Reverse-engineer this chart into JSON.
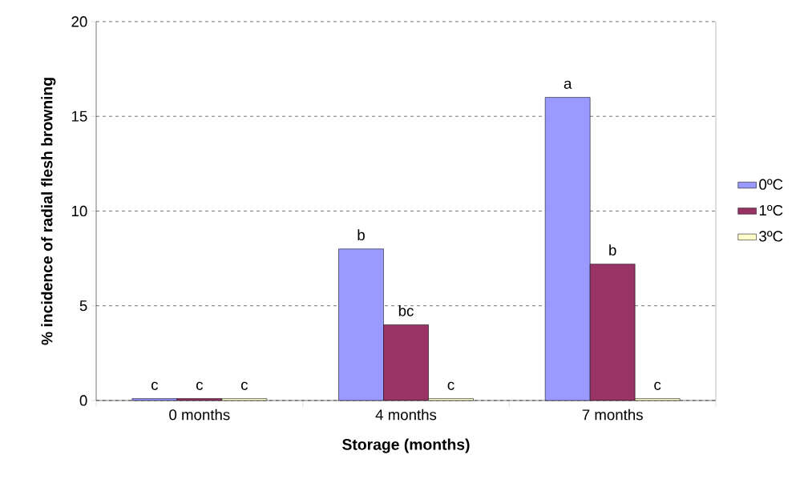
{
  "chart_data": {
    "type": "bar",
    "xlabel": "Storage (months)",
    "ylabel": "% incidence of radial flesh browning",
    "categories": [
      "0 months",
      "4 months",
      "7 months"
    ],
    "series": [
      {
        "name": "0ºC",
        "color": "#9999ff",
        "values": [
          0.1,
          8,
          16
        ],
        "value_labels": [
          "c",
          "b",
          "a"
        ]
      },
      {
        "name": "1ºC",
        "color": "#993366",
        "values": [
          0.1,
          4,
          7.2
        ],
        "value_labels": [
          "c",
          "bc",
          "b"
        ]
      },
      {
        "name": "3ºC",
        "color": "#ffffcc",
        "values": [
          0.1,
          0.1,
          0.1
        ],
        "value_labels": [
          "c",
          "c",
          "c"
        ]
      }
    ],
    "ylim": [
      0,
      20
    ],
    "yticks": [
      0,
      5,
      10,
      15,
      20
    ],
    "grid": "y",
    "legend": "right"
  }
}
